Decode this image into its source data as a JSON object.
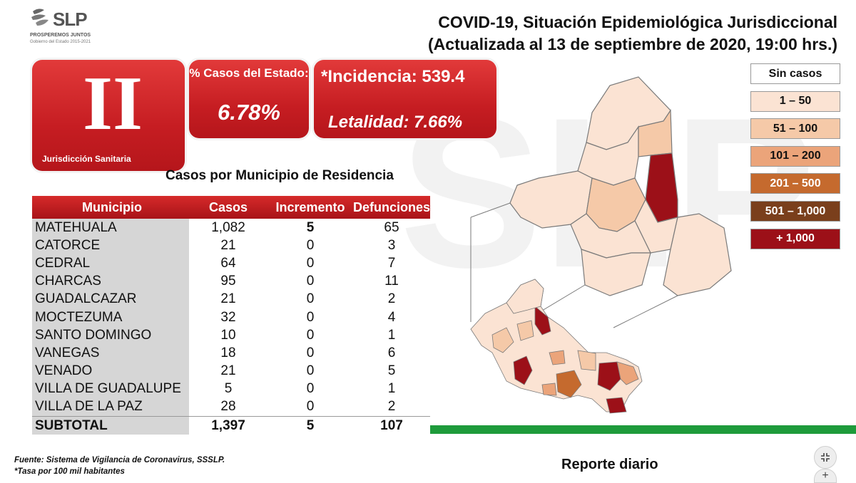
{
  "logo": {
    "wordmark": "SLP",
    "tagline": "PROSPEREMOS JUNTOS",
    "subline": "Gobierno del Estado 2015-2021"
  },
  "title": {
    "line1": "COVID-19, Situación Epidemiológica Jurisdiccional",
    "line2": "(Actualizada al 13 de septiembre de 2020, 19:00 hrs.)"
  },
  "jurisdiction": {
    "numeral": "II",
    "label": "Jurisdicción Sanitaria"
  },
  "state_pct": {
    "label": "% Casos del Estado:",
    "value": "6.78%"
  },
  "incidence": {
    "text": "*Incidencia: 539.4",
    "lethality": "Letalidad: 7.66%"
  },
  "table": {
    "title": "Casos por Municipio  de Residencia",
    "headers": [
      "Municipio",
      "Casos",
      "Incremento",
      "Defunciones"
    ],
    "rows": [
      [
        "MATEHUALA",
        "1,082",
        "5",
        "65"
      ],
      [
        "CATORCE",
        "21",
        "0",
        "3"
      ],
      [
        "CEDRAL",
        "64",
        "0",
        "7"
      ],
      [
        "CHARCAS",
        "95",
        "0",
        "11"
      ],
      [
        "GUADALCAZAR",
        "21",
        "0",
        "2"
      ],
      [
        "MOCTEZUMA",
        "32",
        "0",
        "4"
      ],
      [
        "SANTO DOMINGO",
        "10",
        "0",
        "1"
      ],
      [
        "VANEGAS",
        "18",
        "0",
        "6"
      ],
      [
        "VENADO",
        "21",
        "0",
        "5"
      ],
      [
        "VILLA DE GUADALUPE",
        "5",
        "0",
        "1"
      ],
      [
        "VILLA DE LA PAZ",
        "28",
        "0",
        "2"
      ]
    ],
    "total": [
      "SUBTOTAL",
      "1,397",
      "5",
      "107"
    ]
  },
  "legend": [
    {
      "label": "Sin casos",
      "bg": "#ffffff",
      "fg": "#111111"
    },
    {
      "label": "1 – 50",
      "bg": "#fbe3d3",
      "fg": "#111111"
    },
    {
      "label": "51 – 100",
      "bg": "#f5c9a8",
      "fg": "#111111"
    },
    {
      "label": "101 – 200",
      "bg": "#eba47a",
      "fg": "#111111"
    },
    {
      "label": "201 – 500",
      "bg": "#c56a2e",
      "fg": "#ffffff"
    },
    {
      "label": "501 – 1,000",
      "bg": "#7a3f1c",
      "fg": "#ffffff"
    },
    {
      "label": "+ 1,000",
      "bg": "#9c1018",
      "fg": "#ffffff"
    }
  ],
  "footer": {
    "source": "Fuente: Sistema de Vigilancia de Coronavirus, SSSLP.",
    "note": "*Tasa por 100 mil habitantes"
  },
  "report_label": "Reporte diario",
  "colors": {
    "accent_red": "#c61d22",
    "green_bar": "#1e9b3b"
  },
  "controls": {
    "collapse_icon": "collapse-icon",
    "add_icon": "plus-icon"
  }
}
